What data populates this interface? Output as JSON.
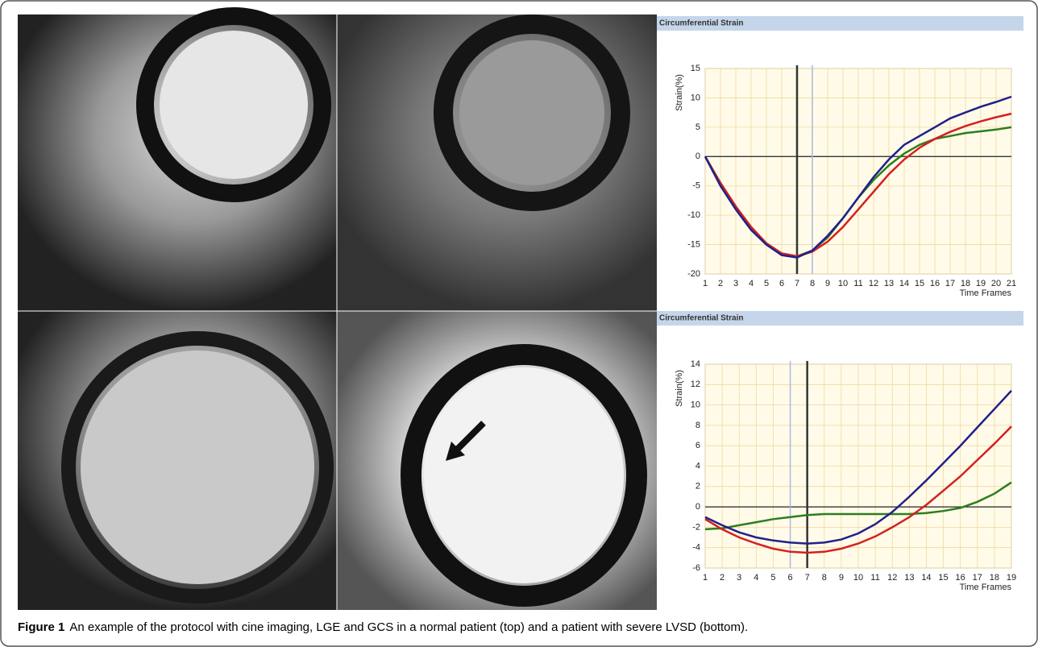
{
  "chart_data": [
    {
      "type": "line",
      "title": "Circumferential Strain",
      "y_label": "Strain(%)",
      "x_label": "Time Frames",
      "x": [
        1,
        2,
        3,
        4,
        5,
        6,
        7,
        8,
        9,
        10,
        11,
        12,
        13,
        14,
        15,
        16,
        17,
        18,
        19,
        20,
        21
      ],
      "xlim": [
        1,
        21
      ],
      "xticks": [
        1,
        2,
        3,
        4,
        5,
        6,
        7,
        8,
        9,
        10,
        11,
        12,
        13,
        14,
        15,
        16,
        17,
        18,
        19,
        20,
        21
      ],
      "ylim": [
        -20,
        15
      ],
      "yticks": [
        -20,
        -15,
        -10,
        -5,
        0,
        5,
        10,
        15
      ],
      "grid": true,
      "vlines": [
        7,
        8
      ],
      "series": [
        {
          "color": "#2e7d1e",
          "values": [
            0,
            -4.5,
            -8.5,
            -12,
            -14.8,
            -16.5,
            -17,
            -16,
            -13.8,
            -10.5,
            -7,
            -4,
            -1.5,
            0.5,
            2,
            3,
            3.5,
            4,
            4.3,
            4.6,
            5
          ]
        },
        {
          "color": "#d42020",
          "values": [
            0,
            -4.5,
            -8.5,
            -12,
            -14.8,
            -16.5,
            -17,
            -16.2,
            -14.5,
            -12,
            -9,
            -6,
            -3,
            -0.5,
            1.5,
            3,
            4.2,
            5.2,
            6,
            6.7,
            7.3
          ]
        },
        {
          "color": "#20208c",
          "values": [
            0,
            -5,
            -9,
            -12.5,
            -15,
            -16.8,
            -17.2,
            -16,
            -13.5,
            -10.5,
            -7,
            -3.5,
            -0.5,
            2,
            3.5,
            5,
            6.5,
            7.5,
            8.5,
            9.3,
            10.2
          ]
        }
      ]
    },
    {
      "type": "line",
      "title": "Circumferential Strain",
      "y_label": "Strain(%)",
      "x_label": "Time Frames",
      "x": [
        1,
        2,
        3,
        4,
        5,
        6,
        7,
        8,
        9,
        10,
        11,
        12,
        13,
        14,
        15,
        16,
        17,
        18,
        19
      ],
      "xlim": [
        1,
        19
      ],
      "xticks": [
        1,
        2,
        3,
        4,
        5,
        6,
        7,
        8,
        9,
        10,
        11,
        12,
        13,
        14,
        15,
        16,
        17,
        18,
        19
      ],
      "ylim": [
        -6,
        14
      ],
      "yticks": [
        -6,
        -4,
        -2,
        0,
        2,
        4,
        6,
        8,
        10,
        12,
        14
      ],
      "grid": true,
      "vlines": [
        6,
        7
      ],
      "series": [
        {
          "color": "#2e7d1e",
          "values": [
            -2.2,
            -2.1,
            -1.8,
            -1.5,
            -1.2,
            -1,
            -0.8,
            -0.7,
            -0.7,
            -0.7,
            -0.7,
            -0.7,
            -0.7,
            -0.6,
            -0.4,
            -0.1,
            0.5,
            1.3,
            2.4
          ]
        },
        {
          "color": "#d42020",
          "values": [
            -1.2,
            -2.2,
            -3,
            -3.6,
            -4.1,
            -4.4,
            -4.5,
            -4.4,
            -4.1,
            -3.6,
            -2.9,
            -2,
            -1,
            0.2,
            1.6,
            3,
            4.6,
            6.2,
            7.9
          ]
        },
        {
          "color": "#20208c",
          "values": [
            -1,
            -1.8,
            -2.5,
            -3,
            -3.3,
            -3.5,
            -3.6,
            -3.5,
            -3.2,
            -2.6,
            -1.7,
            -0.5,
            1,
            2.6,
            4.3,
            6,
            7.8,
            9.6,
            11.4
          ]
        }
      ]
    }
  ],
  "caption": {
    "label": "Figure 1",
    "text": "An example of the protocol with cine imaging, LGE and GCS in a normal patient (top) and a patient with severe LVSD (bottom)."
  }
}
